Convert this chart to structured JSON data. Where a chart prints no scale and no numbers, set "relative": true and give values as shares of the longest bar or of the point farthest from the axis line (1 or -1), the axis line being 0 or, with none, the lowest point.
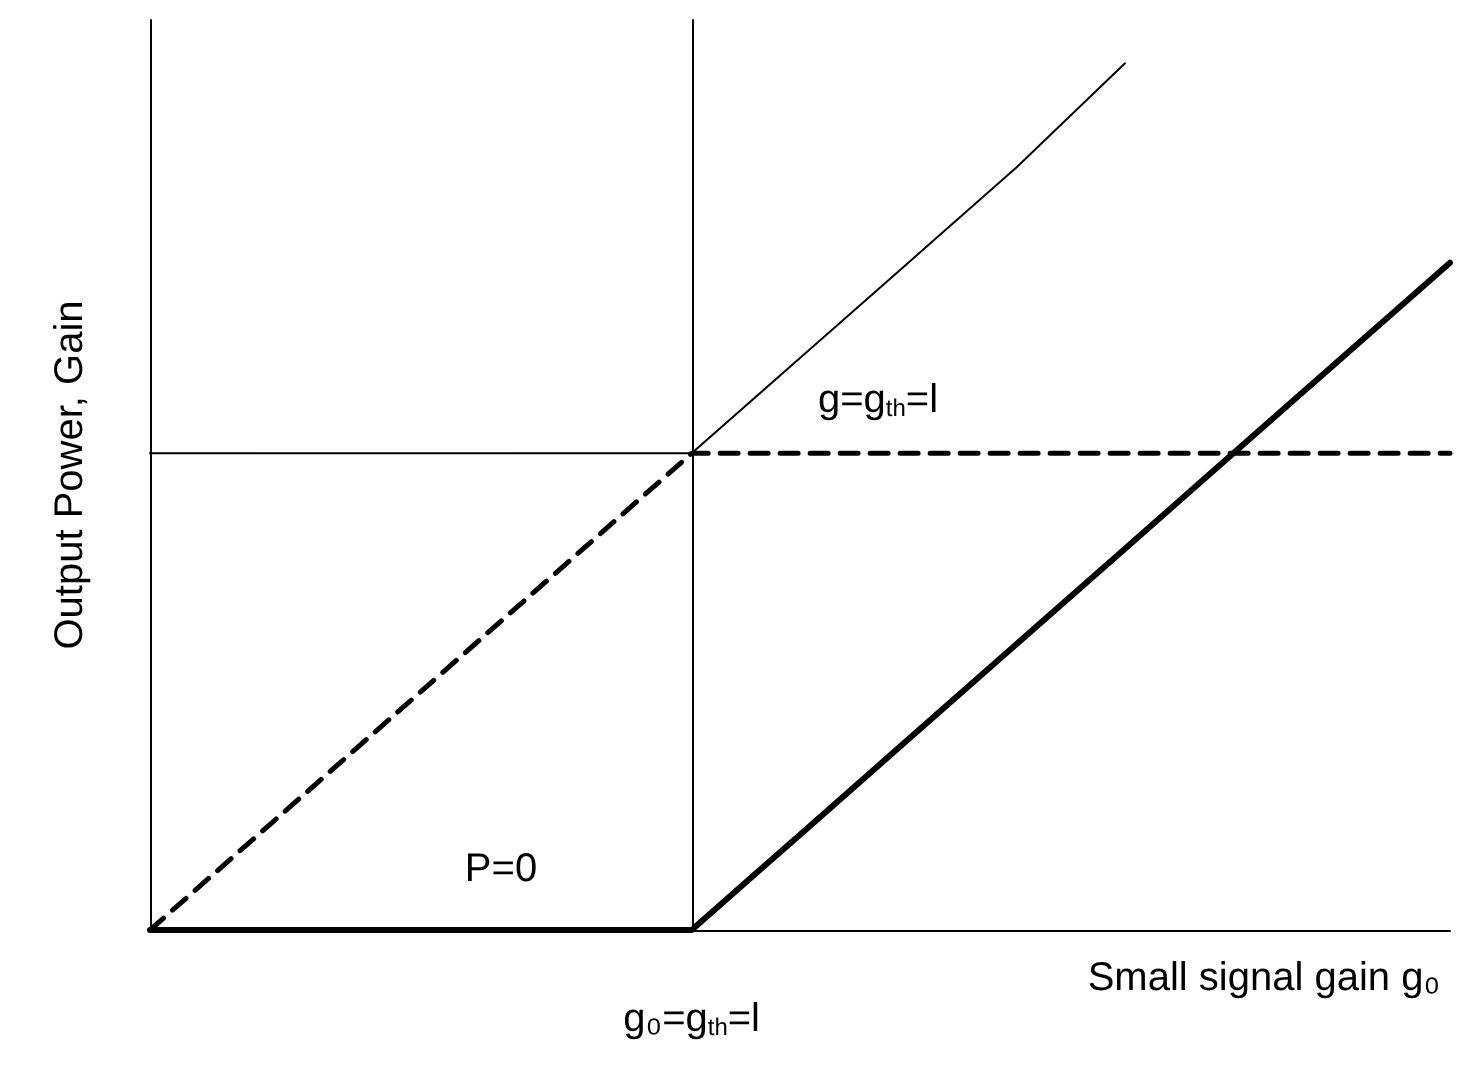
{
  "chart_data": {
    "type": "line",
    "relative": true,
    "xlabel": "Small signal gain g₀",
    "ylabel": "Output Power, Gain",
    "categories": [
      null,
      null,
      null,
      null,
      null,
      null,
      null,
      null,
      null,
      null,
      null,
      null,
      null
    ],
    "series": [
      {
        "color": "#000000",
        "line_style": "dashed",
        "values": [
          0,
          0.11,
          0.22,
          0.33,
          0.44,
          0.55,
          0.55,
          0.55,
          0.55,
          0.55,
          0.55,
          0.55,
          0.55
        ]
      },
      {
        "color": "#000000",
        "line_style": "solid",
        "values": [
          0,
          0,
          0,
          0,
          0,
          0,
          0.11,
          0.22,
          0.33,
          0.44,
          0.55,
          0.66,
          0.77
        ]
      },
      {
        "color": "#000000",
        "line_style": "solid",
        "values": [
          null,
          null,
          null,
          null,
          null,
          0.55,
          0.66,
          0.77,
          0.88,
          1,
          null,
          null,
          null
        ]
      },
      {
        "color": "#000000",
        "line_style": "solid",
        "values": [
          0.55,
          0.55,
          0.55,
          0.55,
          0.55,
          0.55,
          null,
          null,
          null,
          null,
          null,
          null,
          null
        ]
      }
    ],
    "annotations": [
      "P=0",
      "g=g$_{th}$=l",
      "g₀=g$_{th}$=l"
    ],
    "marker": "none",
    "grid": false
  }
}
